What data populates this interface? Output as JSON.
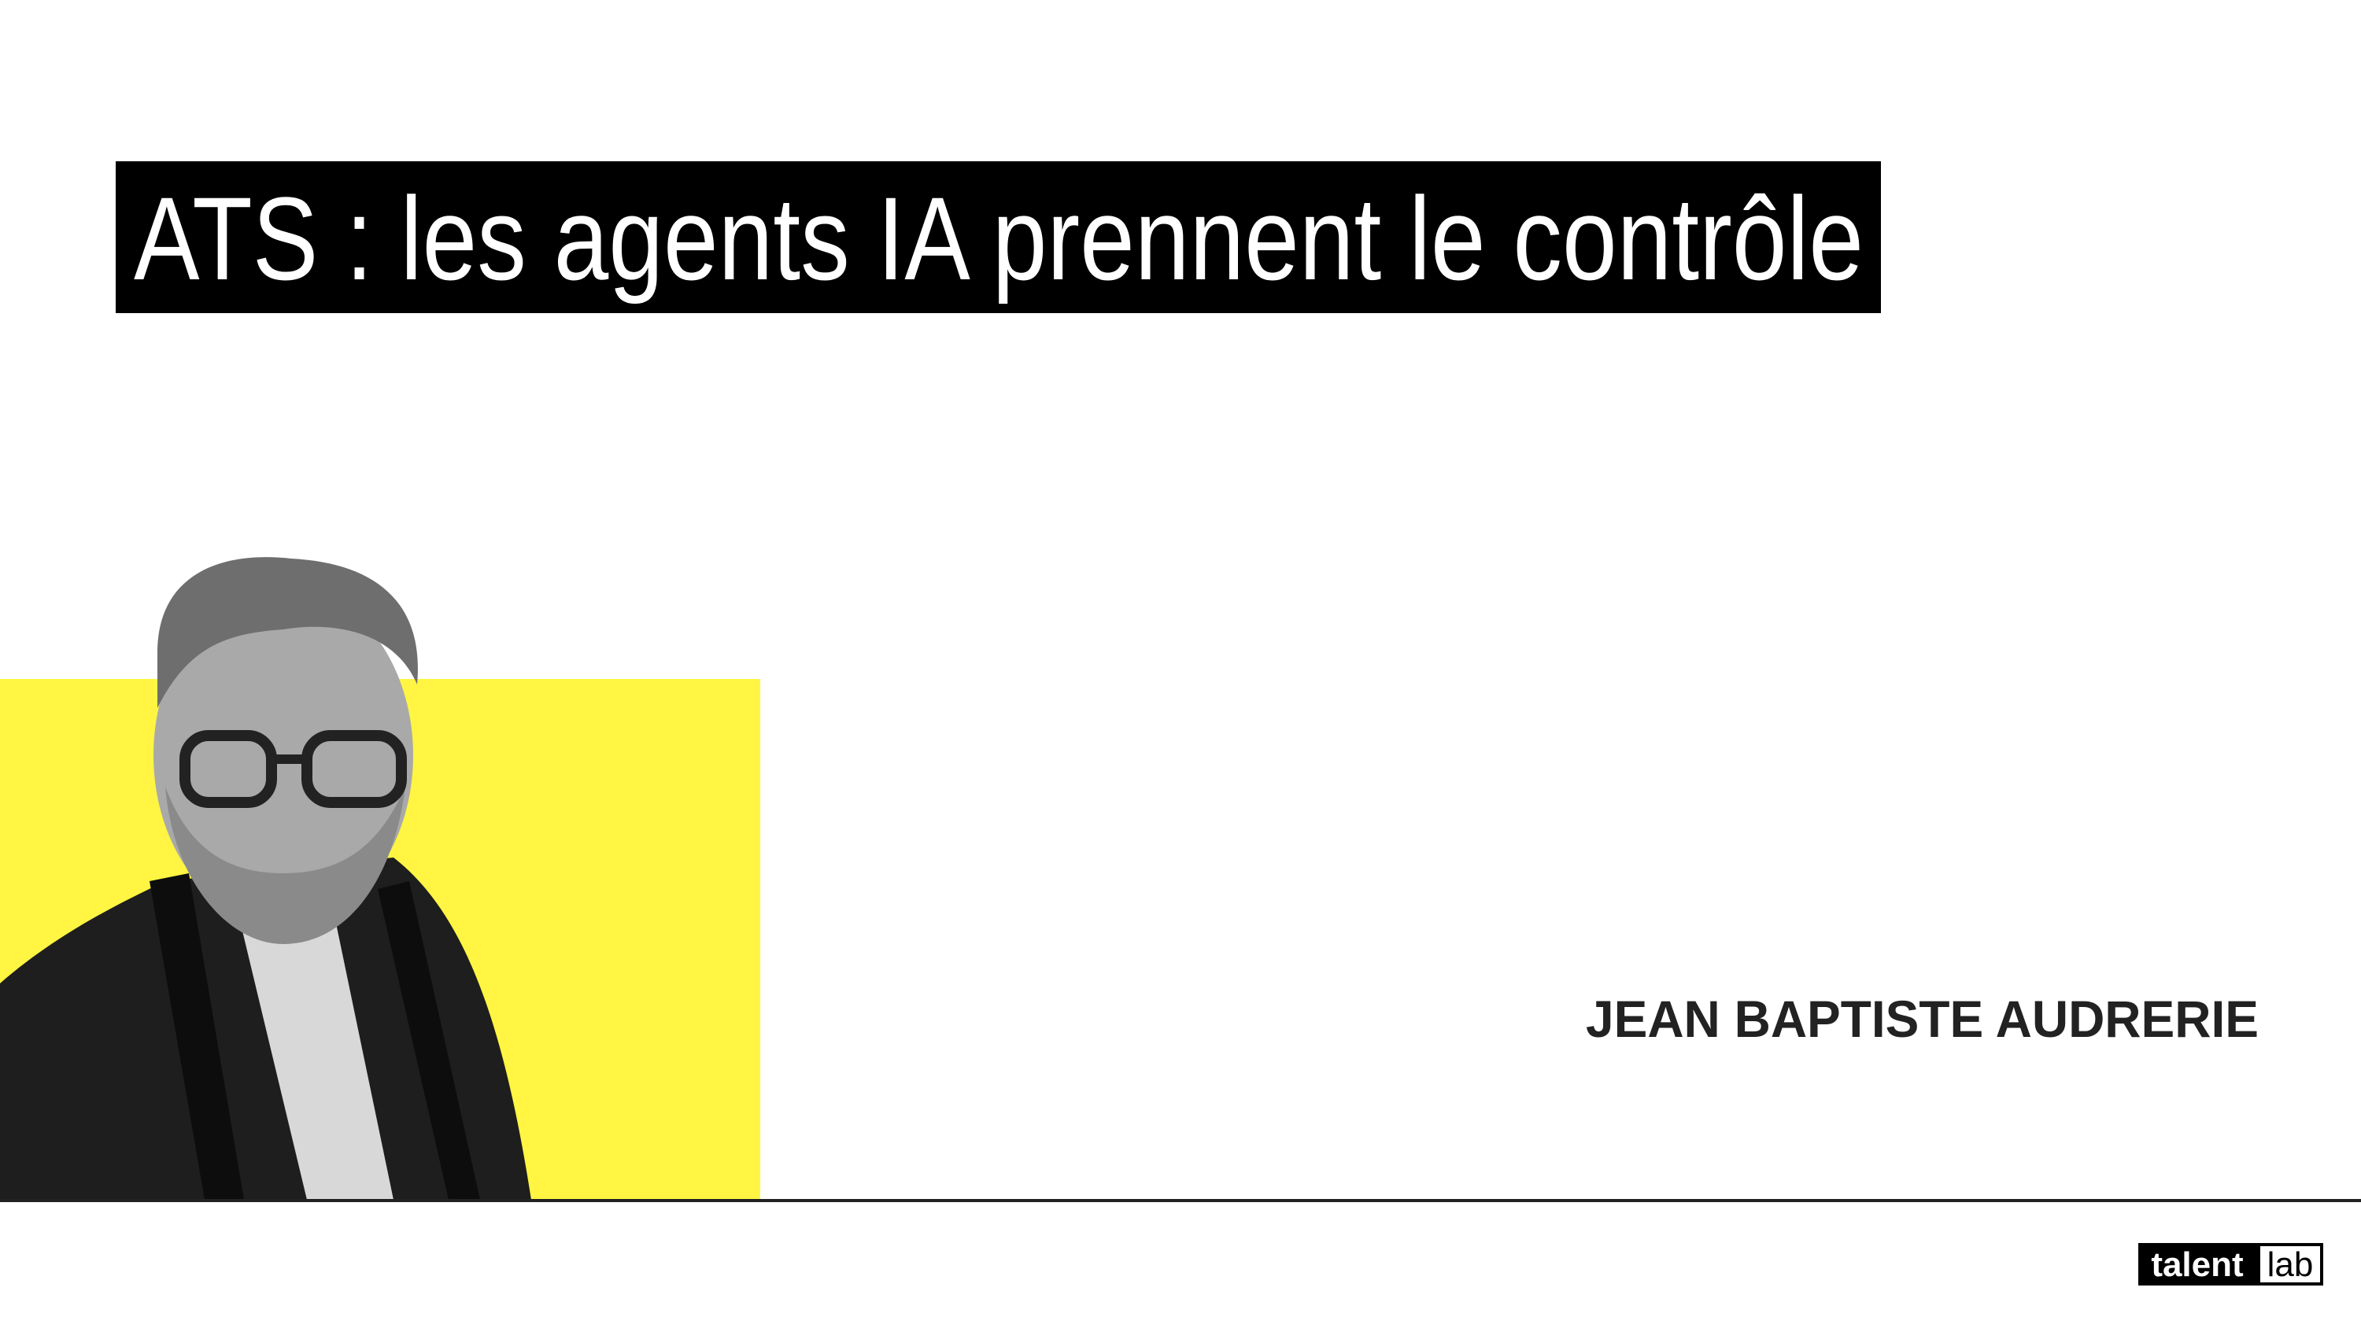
{
  "header": {
    "title": "ATS : les agents IA prennent le contrôle"
  },
  "speaker": {
    "name": "JEAN BAPTISTE AUDRERIE"
  },
  "logo": {
    "talent": "talent",
    "lab": "lab"
  }
}
